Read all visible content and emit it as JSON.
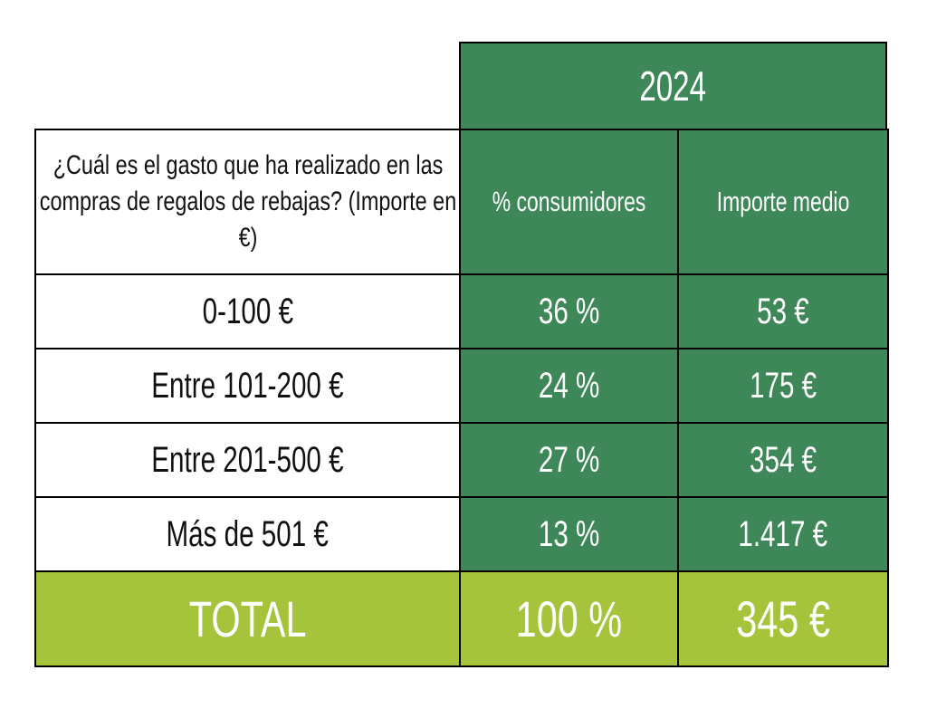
{
  "chart_data": {
    "type": "table",
    "title": "2024",
    "header": {
      "question": "¿Cuál es el gasto que ha realizado en las compras de regalos de rebajas? (Importe en €)",
      "columns": [
        "% consumidores",
        "Importe medio"
      ]
    },
    "rows": [
      {
        "label": "0-100 €",
        "pct": "36 %",
        "amount": "53 €"
      },
      {
        "label": "Entre 101-200 €",
        "pct": "24 %",
        "amount": "175 €"
      },
      {
        "label": "Entre 201-500 €",
        "pct": "27 %",
        "amount": "354 €"
      },
      {
        "label": "Más de 501 €",
        "pct": "13 %",
        "amount": "1.417 €"
      }
    ],
    "total": {
      "label": "TOTAL",
      "pct": "100 %",
      "amount": "345 €"
    }
  },
  "colors": {
    "header_green": "#3e8758",
    "total_green": "#a6c33c",
    "border": "#000000"
  }
}
